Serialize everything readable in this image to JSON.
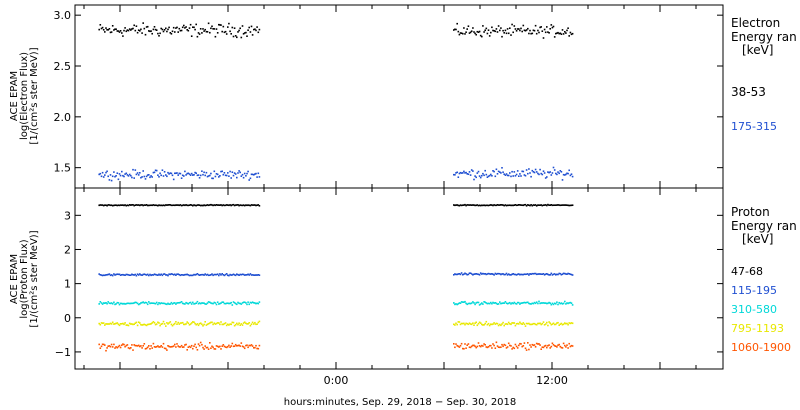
{
  "chart_data": [
    {
      "type": "scatter",
      "panel": "electron",
      "ylabel_lines": [
        "ACE EPAM",
        "log(Electron Flux)",
        "[1/(cm²s ster MeV)]"
      ],
      "ylim": [
        1.3,
        3.1
      ],
      "yticks": [
        1.5,
        2.0,
        2.5,
        3.0
      ],
      "ytick_labels": [
        "1.5",
        "2.0",
        "2.5",
        "3.0"
      ],
      "legend_title_lines": [
        "Electron",
        "Energy ran",
        "[keV]"
      ],
      "series": [
        {
          "name": "38-53",
          "color": "#000000",
          "segments": [
            [
              -13.2,
              -4.3,
              2.86,
              0.09
            ],
            [
              6.5,
              13.1,
              2.85,
              0.08
            ]
          ]
        },
        {
          "name": "175-315",
          "color": "#1f4fd1",
          "segments": [
            [
              -13.2,
              -4.3,
              1.44,
              0.06
            ],
            [
              6.5,
              13.1,
              1.45,
              0.07
            ]
          ]
        }
      ]
    },
    {
      "type": "scatter",
      "panel": "proton",
      "ylabel_lines": [
        "ACE EPAM",
        "log(Proton Flux)",
        "[1/(cm²s ster MeV)]"
      ],
      "ylim": [
        -1.5,
        3.8
      ],
      "yticks": [
        -1,
        0,
        1,
        2,
        3
      ],
      "ytick_labels": [
        "−1",
        "0",
        "1",
        "2",
        "3"
      ],
      "legend_title_lines": [
        "Proton",
        "Energy ran",
        "[keV]"
      ],
      "series": [
        {
          "name": "47-68",
          "color": "#000000",
          "segments": [
            [
              -13.2,
              -4.3,
              3.32,
              0.02
            ],
            [
              6.5,
              13.1,
              3.32,
              0.02
            ]
          ]
        },
        {
          "name": "115-195",
          "color": "#1f4fd1",
          "segments": [
            [
              -13.2,
              -4.3,
              1.28,
              0.04
            ],
            [
              6.5,
              13.1,
              1.3,
              0.04
            ]
          ]
        },
        {
          "name": "310-580",
          "color": "#00d8d8",
          "segments": [
            [
              -13.2,
              -4.3,
              0.45,
              0.06
            ],
            [
              6.5,
              13.1,
              0.45,
              0.06
            ]
          ]
        },
        {
          "name": "795-1193",
          "color": "#e8e800",
          "segments": [
            [
              -13.2,
              -4.3,
              -0.15,
              0.08
            ],
            [
              6.5,
              13.1,
              -0.15,
              0.08
            ]
          ]
        },
        {
          "name": "1060-1900",
          "color": "#ff5500",
          "segments": [
            [
              -13.2,
              -4.3,
              -0.82,
              0.14
            ],
            [
              6.5,
              13.1,
              -0.8,
              0.14
            ]
          ]
        }
      ]
    }
  ],
  "x_axis": {
    "ticks": [
      0,
      12
    ],
    "tick_labels": [
      "0:00",
      "12:00"
    ],
    "xlim": [
      -14.5,
      21.5
    ],
    "xlabel": "hours:minutes, Sep. 29, 2018 − Sep. 30, 2018"
  }
}
